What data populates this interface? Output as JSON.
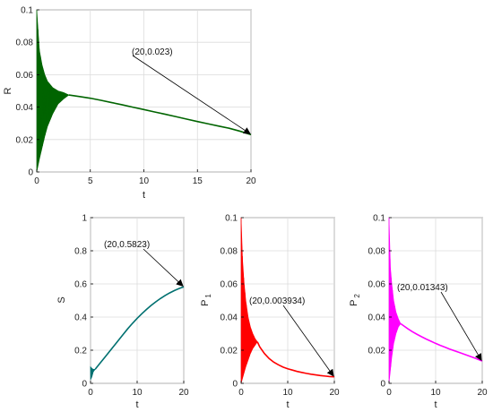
{
  "chart_data": [
    {
      "id": "R",
      "type": "line",
      "xlabel": "t",
      "ylabel": "R",
      "xlim": [
        0,
        20
      ],
      "ylim": [
        0,
        0.1
      ],
      "xticks": [
        0,
        5,
        10,
        15,
        20
      ],
      "yticks": [
        0,
        0.02,
        0.04,
        0.06,
        0.08,
        0.1
      ],
      "xtick_labels": [
        "0",
        "5",
        "10",
        "15",
        "20"
      ],
      "ytick_labels": [
        "0",
        "0.02",
        "0.04",
        "0.06",
        "0.08",
        "0.1"
      ],
      "grid": true,
      "color": "#006400",
      "envelope": {
        "x": [
          0,
          0.25,
          0.5,
          0.75,
          1.0,
          1.5,
          2.0,
          2.5,
          3.0
        ],
        "upper": [
          0.1,
          0.075,
          0.066,
          0.06,
          0.056,
          0.052,
          0.05,
          0.049,
          0.0475
        ],
        "lower": [
          0.0,
          0.008,
          0.015,
          0.022,
          0.028,
          0.036,
          0.042,
          0.045,
          0.0475
        ]
      },
      "series": {
        "x": [
          3,
          4,
          5,
          6,
          7,
          8,
          9,
          10,
          11,
          12,
          13,
          14,
          15,
          16,
          17,
          18,
          19,
          20
        ],
        "y": [
          0.0475,
          0.0465,
          0.0455,
          0.0442,
          0.0428,
          0.0414,
          0.0399,
          0.0385,
          0.037,
          0.0356,
          0.0341,
          0.0326,
          0.0311,
          0.0297,
          0.0283,
          0.0269,
          0.0251,
          0.023
        ]
      },
      "annotation": {
        "text": "(20,0.023)",
        "x": 20,
        "y": 0.023
      }
    },
    {
      "id": "S",
      "type": "line",
      "xlabel": "t",
      "ylabel": "S",
      "xlim": [
        0,
        20
      ],
      "ylim": [
        0,
        1
      ],
      "xticks": [
        0,
        10,
        20
      ],
      "yticks": [
        0,
        0.2,
        0.4,
        0.6,
        0.8,
        1
      ],
      "xtick_labels": [
        "0",
        "10",
        "20"
      ],
      "ytick_labels": [
        "0",
        "0.2",
        "0.4",
        "0.6",
        "0.8",
        "1"
      ],
      "grid": true,
      "color": "#007070",
      "envelope": {
        "x": [
          0,
          0.3,
          0.6,
          1.0
        ],
        "upper": [
          0.1,
          0.09,
          0.085,
          0.085
        ],
        "lower": [
          0.02,
          0.04,
          0.07,
          0.085
        ]
      },
      "series": {
        "x": [
          1,
          2,
          3,
          4,
          5,
          6,
          7,
          8,
          9,
          10,
          11,
          12,
          13,
          14,
          15,
          16,
          17,
          18,
          19,
          20
        ],
        "y": [
          0.085,
          0.12,
          0.155,
          0.19,
          0.225,
          0.26,
          0.295,
          0.33,
          0.362,
          0.392,
          0.42,
          0.446,
          0.47,
          0.492,
          0.512,
          0.53,
          0.546,
          0.56,
          0.572,
          0.5823
        ]
      },
      "annotation": {
        "text": "(20,0.5823)",
        "x": 20,
        "y": 0.5823
      }
    },
    {
      "id": "P1",
      "type": "line",
      "xlabel": "t",
      "ylabel": "P",
      "ylabel_sub": "1",
      "xlim": [
        0,
        20
      ],
      "ylim": [
        0,
        0.1
      ],
      "xticks": [
        0,
        10,
        20
      ],
      "yticks": [
        0,
        0.02,
        0.04,
        0.06,
        0.08,
        0.1
      ],
      "xtick_labels": [
        "0",
        "10",
        "20"
      ],
      "ytick_labels": [
        "0",
        "0.02",
        "0.04",
        "0.06",
        "0.08",
        "0.1"
      ],
      "grid": true,
      "color": "#ff0000",
      "envelope": {
        "x": [
          0,
          0.3,
          0.6,
          1.0,
          1.5,
          2.0,
          2.5,
          3.0,
          3.5
        ],
        "upper": [
          0.1,
          0.075,
          0.062,
          0.05,
          0.04,
          0.034,
          0.03,
          0.027,
          0.025
        ],
        "lower": [
          0.0,
          0.003,
          0.006,
          0.01,
          0.014,
          0.018,
          0.021,
          0.023,
          0.025
        ]
      },
      "series": {
        "x": [
          3.5,
          4,
          5,
          6,
          7,
          8,
          9,
          10,
          11,
          12,
          13,
          14,
          15,
          16,
          17,
          18,
          19,
          20
        ],
        "y": [
          0.025,
          0.022,
          0.018,
          0.015,
          0.0128,
          0.0112,
          0.0098,
          0.0088,
          0.008,
          0.0072,
          0.0066,
          0.006,
          0.0055,
          0.0051,
          0.0047,
          0.0044,
          0.0041,
          0.003934
        ]
      },
      "annotation": {
        "text": "(20,0.003934)",
        "x": 20,
        "y": 0.003934
      }
    },
    {
      "id": "P2",
      "type": "line",
      "xlabel": "t",
      "ylabel": "P",
      "ylabel_sub": "2",
      "xlim": [
        0,
        20
      ],
      "ylim": [
        0,
        0.1
      ],
      "xticks": [
        0,
        10,
        20
      ],
      "yticks": [
        0,
        0.02,
        0.04,
        0.06,
        0.08,
        0.1
      ],
      "xtick_labels": [
        "0",
        "10",
        "20"
      ],
      "ytick_labels": [
        "0",
        "0.02",
        "0.04",
        "0.06",
        "0.08",
        "0.1"
      ],
      "grid": true,
      "color": "#ff00ff",
      "envelope": {
        "x": [
          0,
          0.3,
          0.6,
          1.0,
          1.5,
          2.0,
          2.5
        ],
        "upper": [
          0.1,
          0.07,
          0.06,
          0.05,
          0.043,
          0.039,
          0.036
        ],
        "lower": [
          0.0,
          0.008,
          0.016,
          0.024,
          0.03,
          0.034,
          0.036
        ]
      },
      "series": {
        "x": [
          2.5,
          3,
          4,
          5,
          6,
          7,
          8,
          9,
          10,
          11,
          12,
          13,
          14,
          15,
          16,
          17,
          18,
          19,
          20
        ],
        "y": [
          0.036,
          0.035,
          0.033,
          0.0312,
          0.0296,
          0.0281,
          0.0267,
          0.0254,
          0.0241,
          0.0229,
          0.0218,
          0.0207,
          0.0197,
          0.0187,
          0.0177,
          0.0167,
          0.0157,
          0.0146,
          0.01343
        ]
      },
      "annotation": {
        "text": "(20,0.01343)",
        "x": 20,
        "y": 0.01343
      }
    }
  ]
}
